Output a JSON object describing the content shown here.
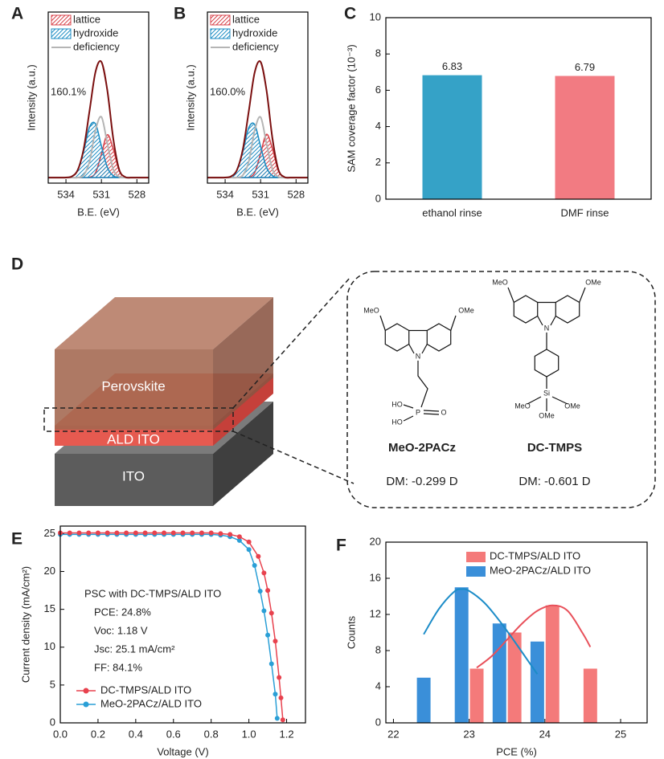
{
  "chart_data": [
    {
      "panel": "A",
      "type": "area",
      "xlabel": "B.E. (eV)",
      "ylabel": "Intensity (a.u.)",
      "annotation": "160.1%",
      "x": [
        535.5,
        535,
        534.5,
        534,
        533.5,
        533,
        532.5,
        532,
        531.5,
        531,
        530.5,
        530,
        529.5,
        529,
        528.5,
        528,
        527.5,
        527
      ],
      "xlim": [
        535.5,
        527
      ],
      "xticks": [
        534,
        531,
        528
      ],
      "ylim": [
        -5,
        150
      ],
      "series": [
        {
          "name": "lattice",
          "color": "#d8444c",
          "hatch": true,
          "values": [
            0,
            0,
            0,
            0,
            0,
            0,
            0,
            0.3,
            4.3,
            21.3,
            38.8,
            26,
            6.4,
            0.6,
            0,
            0,
            0,
            0
          ]
        },
        {
          "name": "hydroxide",
          "color": "#1f8ec4",
          "hatch": true,
          "values": [
            0,
            0,
            0,
            0.1,
            1.1,
            6.9,
            23.9,
            45.9,
            48.6,
            28.5,
            9.3,
            1.7,
            0.1,
            0,
            0,
            0,
            0,
            0
          ]
        },
        {
          "name": "deficiency",
          "color": "#b5b5b5",
          "values": [
            0,
            0,
            0,
            0,
            0,
            0.1,
            2.2,
            14.7,
            43,
            55,
            30.9,
            7.6,
            0.8,
            0,
            0,
            0,
            0,
            0
          ]
        }
      ],
      "envelope": {
        "color": "#7b1010",
        "values": [
          0,
          0,
          0,
          0.1,
          1.1,
          7,
          26.1,
          60.9,
          95.9,
          104.8,
          79,
          35.3,
          7.3,
          0.6,
          0,
          0,
          0,
          0
        ]
      }
    },
    {
      "panel": "B",
      "type": "area",
      "xlabel": "B.E. (eV)",
      "ylabel": "Intensity (a.u.)",
      "annotation": "160.0%",
      "x": [
        535.5,
        535,
        534.5,
        534,
        533.5,
        533,
        532.5,
        532,
        531.5,
        531,
        530.5,
        530,
        529.5,
        529,
        528.5,
        528,
        527.5,
        527
      ],
      "xlim": [
        535.5,
        527
      ],
      "xticks": [
        534,
        531,
        528
      ],
      "ylim": [
        -5,
        150
      ],
      "series": [
        {
          "name": "lattice",
          "color": "#d8444c",
          "hatch": true,
          "values": [
            0,
            0,
            0,
            0,
            0,
            0,
            0,
            0.3,
            4.5,
            21.8,
            39.2,
            26.3,
            6.5,
            0.6,
            0,
            0,
            0,
            0
          ]
        },
        {
          "name": "hydroxide",
          "color": "#1f8ec4",
          "hatch": true,
          "values": [
            0,
            0,
            0,
            0.1,
            1.1,
            6.8,
            23.5,
            45.2,
            48.0,
            28.2,
            9.2,
            1.7,
            0.1,
            0,
            0,
            0,
            0,
            0
          ]
        },
        {
          "name": "deficiency",
          "color": "#b5b5b5",
          "values": [
            0,
            0,
            0,
            0,
            0,
            0.1,
            2.2,
            14.6,
            42.8,
            54.8,
            30.8,
            7.6,
            0.8,
            0,
            0,
            0,
            0,
            0
          ]
        }
      ],
      "envelope": {
        "color": "#7b1010",
        "values": [
          0,
          0,
          0,
          0.1,
          1.1,
          6.9,
          25.7,
          60.1,
          95.3,
          104.8,
          79.2,
          35.6,
          7.4,
          0.6,
          0,
          0,
          0,
          0
        ]
      }
    },
    {
      "panel": "C",
      "type": "bar",
      "ylabel": "SAM coverage factor (10⁻³)",
      "categories": [
        "ethanol rinse",
        "DMF rinse"
      ],
      "values": [
        6.83,
        6.79
      ],
      "colors": [
        "#35a2c7",
        "#f27b82"
      ],
      "ylim": [
        0,
        10
      ],
      "yticks": [
        0,
        2,
        4,
        6,
        8,
        10
      ]
    },
    {
      "panel": "E",
      "type": "line",
      "xlabel": "Voltage (V)",
      "ylabel": "Current density (mA/cm²)",
      "annotations": [
        "PSC with DC-TMPS/ALD ITO",
        "PCE: 24.8%",
        "Voc: 1.18 V",
        "Jsc: 25.1 mA/cm²",
        "FF: 84.1%"
      ],
      "xlim": [
        0,
        1.3
      ],
      "xticks": [
        {
          "value": 0,
          "label": "0.0"
        },
        0.2,
        0.4,
        0.6,
        0.8,
        {
          "value": 1,
          "label": "1.0"
        },
        1.2
      ],
      "ylim": [
        0,
        26
      ],
      "yticks": [
        0,
        5,
        10,
        15,
        20,
        25
      ],
      "series": [
        {
          "name": "DC-TMPS/ALD ITO",
          "color": "#e8424e",
          "x": [
            0,
            0.05,
            0.1,
            0.15,
            0.2,
            0.25,
            0.3,
            0.35,
            0.4,
            0.45,
            0.5,
            0.55,
            0.6,
            0.65,
            0.7,
            0.75,
            0.8,
            0.85,
            0.9,
            0.95,
            1,
            1.05,
            1.08,
            1.1,
            1.12,
            1.14,
            1.16,
            1.17,
            1.18
          ],
          "values": [
            25.1,
            25.1,
            25.1,
            25.1,
            25.1,
            25.1,
            25.1,
            25.1,
            25.1,
            25.1,
            25.1,
            25.1,
            25.1,
            25.1,
            25.1,
            25.1,
            25.1,
            25.0,
            24.9,
            24.6,
            23.9,
            22.0,
            19.8,
            17.5,
            14.5,
            10.8,
            6.0,
            3.3,
            0.4
          ]
        },
        {
          "name": "MeO-2PACz/ALD ITO",
          "color": "#2a9fd6",
          "x": [
            0,
            0.05,
            0.1,
            0.15,
            0.2,
            0.25,
            0.3,
            0.35,
            0.4,
            0.45,
            0.5,
            0.55,
            0.6,
            0.65,
            0.7,
            0.75,
            0.8,
            0.85,
            0.9,
            0.95,
            1,
            1.03,
            1.06,
            1.08,
            1.1,
            1.12,
            1.14,
            1.15
          ],
          "values": [
            24.9,
            24.9,
            24.9,
            24.9,
            24.9,
            24.9,
            24.9,
            24.9,
            24.9,
            24.9,
            24.9,
            24.9,
            24.9,
            24.9,
            24.9,
            24.9,
            24.9,
            24.8,
            24.6,
            24.1,
            22.9,
            20.8,
            17.4,
            14.8,
            11.6,
            7.8,
            3.8,
            0.6
          ]
        }
      ]
    },
    {
      "panel": "F",
      "type": "bar",
      "xlabel": "PCE (%)",
      "ylabel": "Counts",
      "xlim": [
        21.9,
        25.35
      ],
      "xticks": [
        22,
        23,
        24,
        25
      ],
      "ylim": [
        0,
        20
      ],
      "yticks": [
        0,
        4,
        8,
        12,
        16,
        20
      ],
      "series": [
        {
          "name": "DC-TMPS/ALD ITO",
          "color": "#f47a7a",
          "x": [
            23.1,
            23.6,
            24.1,
            24.6
          ],
          "values": [
            6,
            10,
            13,
            6
          ]
        },
        {
          "name": "MeO-2PACz/ALD ITO",
          "color": "#3a8fd9",
          "x": [
            22.4,
            22.9,
            23.4,
            23.9
          ],
          "values": [
            5,
            15,
            11,
            9
          ]
        }
      ],
      "fits": [
        {
          "color": "#e8505a",
          "x": [
            23.1,
            23.3,
            23.5,
            23.7,
            23.9,
            24.1,
            24.3,
            24.5,
            24.6
          ],
          "values": [
            6.1,
            7.4,
            9.2,
            11.0,
            12.4,
            13.0,
            12.4,
            9.9,
            8.4
          ]
        },
        {
          "color": "#1c8cc8",
          "x": [
            22.4,
            22.6,
            22.8,
            22.9,
            23.0,
            23.2,
            23.4,
            23.6,
            23.8,
            23.9
          ],
          "values": [
            9.8,
            12.6,
            14.5,
            14.8,
            14.6,
            13.3,
            11.3,
            9.0,
            6.6,
            5.4
          ]
        }
      ]
    }
  ],
  "diagram": {
    "panel": "D",
    "layers": [
      "Perovskite",
      "ALD ITO",
      "ITO"
    ],
    "molecules": [
      {
        "name": "MeO-2PACz",
        "dipole": "DM: -0.299 D",
        "atoms": [
          "MeO",
          "OMe",
          "N",
          "HO",
          "HO",
          "P",
          "O"
        ]
      },
      {
        "name": "DC-TMPS",
        "dipole": "DM: -0.601 D",
        "atoms": [
          "MeO",
          "OMe",
          "N",
          "Si",
          "MeO",
          "OMe",
          "OMe"
        ]
      }
    ]
  }
}
